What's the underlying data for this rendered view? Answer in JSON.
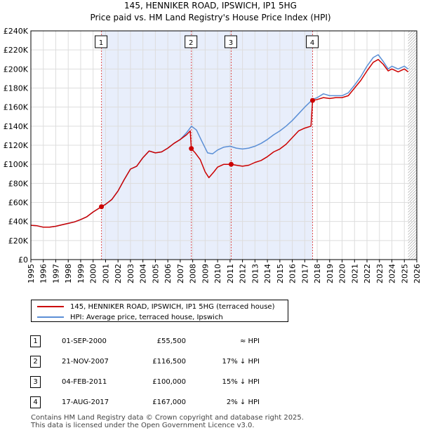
{
  "chart_data": {
    "type": "line",
    "title": "145, HENNIKER ROAD, IPSWICH, IP1 5HG",
    "subtitle": "Price paid vs. HM Land Registry's House Price Index (HPI)",
    "xlim": [
      1995,
      2026
    ],
    "ylim": [
      0,
      240000
    ],
    "x_ticks": [
      "1995",
      "1996",
      "1997",
      "1998",
      "1999",
      "2000",
      "2001",
      "2002",
      "2003",
      "2004",
      "2005",
      "2006",
      "2007",
      "2008",
      "2009",
      "2010",
      "2011",
      "2012",
      "2013",
      "2014",
      "2015",
      "2016",
      "2017",
      "2018",
      "2019",
      "2020",
      "2021",
      "2022",
      "2023",
      "2024",
      "2025",
      "2026"
    ],
    "y_ticks": [
      "£0",
      "£20K",
      "£40K",
      "£60K",
      "£80K",
      "£100K",
      "£120K",
      "£140K",
      "£160K",
      "£180K",
      "£200K",
      "£220K",
      "£240K"
    ],
    "shaded_span": [
      2000.67,
      2017.63
    ],
    "future_hatch_from": 2025.3,
    "series": [
      {
        "name": "145, HENNIKER ROAD, IPSWICH, IP1 5HG (terraced house)",
        "color": "#cc0000",
        "points": [
          [
            1995.0,
            36000
          ],
          [
            1995.5,
            35500
          ],
          [
            1996.0,
            34000
          ],
          [
            1996.5,
            34000
          ],
          [
            1997.0,
            35000
          ],
          [
            1997.5,
            36500
          ],
          [
            1998.0,
            38000
          ],
          [
            1998.5,
            39500
          ],
          [
            1999.0,
            42000
          ],
          [
            1999.5,
            45000
          ],
          [
            2000.0,
            50000
          ],
          [
            2000.67,
            55500
          ],
          [
            2001.0,
            58000
          ],
          [
            2001.5,
            63000
          ],
          [
            2002.0,
            72000
          ],
          [
            2002.5,
            84000
          ],
          [
            2003.0,
            95000
          ],
          [
            2003.5,
            98000
          ],
          [
            2004.0,
            107000
          ],
          [
            2004.5,
            114000
          ],
          [
            2005.0,
            112000
          ],
          [
            2005.5,
            113000
          ],
          [
            2006.0,
            117000
          ],
          [
            2006.5,
            122000
          ],
          [
            2007.0,
            126000
          ],
          [
            2007.5,
            131000
          ],
          [
            2007.8,
            135000
          ],
          [
            2007.89,
            116500
          ],
          [
            2008.2,
            112000
          ],
          [
            2008.6,
            105000
          ],
          [
            2009.0,
            92000
          ],
          [
            2009.3,
            86000
          ],
          [
            2009.7,
            92000
          ],
          [
            2010.0,
            97000
          ],
          [
            2010.5,
            100000
          ],
          [
            2011.1,
            100000
          ],
          [
            2011.5,
            99000
          ],
          [
            2012.0,
            98000
          ],
          [
            2012.5,
            99000
          ],
          [
            2013.0,
            102000
          ],
          [
            2013.5,
            104000
          ],
          [
            2014.0,
            108000
          ],
          [
            2014.5,
            113000
          ],
          [
            2015.0,
            116000
          ],
          [
            2015.5,
            121000
          ],
          [
            2016.0,
            128000
          ],
          [
            2016.5,
            135000
          ],
          [
            2017.0,
            138000
          ],
          [
            2017.5,
            140000
          ],
          [
            2017.63,
            167000
          ],
          [
            2018.0,
            168000
          ],
          [
            2018.5,
            170000
          ],
          [
            2019.0,
            169000
          ],
          [
            2019.5,
            170000
          ],
          [
            2020.0,
            170000
          ],
          [
            2020.5,
            172000
          ],
          [
            2021.0,
            180000
          ],
          [
            2021.5,
            188000
          ],
          [
            2022.0,
            198000
          ],
          [
            2022.5,
            207000
          ],
          [
            2022.9,
            210000
          ],
          [
            2023.3,
            205000
          ],
          [
            2023.7,
            198000
          ],
          [
            2024.0,
            200000
          ],
          [
            2024.5,
            197000
          ],
          [
            2025.0,
            200000
          ],
          [
            2025.3,
            197000
          ]
        ]
      },
      {
        "name": "HPI: Average price, terraced house, Ipswich",
        "color": "#5b8fd6",
        "points": [
          [
            1995.0,
            36000
          ],
          [
            1995.5,
            35500
          ],
          [
            1996.0,
            34000
          ],
          [
            1996.5,
            34000
          ],
          [
            1997.0,
            35000
          ],
          [
            1997.5,
            36500
          ],
          [
            1998.0,
            38000
          ],
          [
            1998.5,
            39500
          ],
          [
            1999.0,
            42000
          ],
          [
            1999.5,
            45000
          ],
          [
            2000.0,
            50000
          ],
          [
            2000.67,
            55500
          ],
          [
            2001.0,
            58000
          ],
          [
            2001.5,
            63000
          ],
          [
            2002.0,
            72000
          ],
          [
            2002.5,
            84000
          ],
          [
            2003.0,
            95000
          ],
          [
            2003.5,
            98000
          ],
          [
            2004.0,
            107000
          ],
          [
            2004.5,
            114000
          ],
          [
            2005.0,
            112000
          ],
          [
            2005.5,
            113000
          ],
          [
            2006.0,
            117000
          ],
          [
            2006.5,
            122000
          ],
          [
            2007.0,
            126000
          ],
          [
            2007.5,
            133000
          ],
          [
            2007.9,
            140000
          ],
          [
            2008.3,
            136000
          ],
          [
            2008.7,
            125000
          ],
          [
            2009.2,
            112000
          ],
          [
            2009.6,
            111000
          ],
          [
            2010.0,
            115000
          ],
          [
            2010.5,
            118000
          ],
          [
            2011.0,
            119000
          ],
          [
            2011.5,
            117000
          ],
          [
            2012.0,
            116000
          ],
          [
            2012.5,
            117000
          ],
          [
            2013.0,
            119000
          ],
          [
            2013.5,
            122000
          ],
          [
            2014.0,
            126000
          ],
          [
            2014.5,
            131000
          ],
          [
            2015.0,
            135000
          ],
          [
            2015.5,
            140000
          ],
          [
            2016.0,
            146000
          ],
          [
            2016.5,
            153000
          ],
          [
            2017.0,
            160000
          ],
          [
            2017.63,
            168000
          ],
          [
            2018.0,
            170000
          ],
          [
            2018.5,
            174000
          ],
          [
            2019.0,
            172000
          ],
          [
            2019.5,
            172000
          ],
          [
            2020.0,
            172000
          ],
          [
            2020.5,
            175000
          ],
          [
            2021.0,
            183000
          ],
          [
            2021.5,
            192000
          ],
          [
            2022.0,
            203000
          ],
          [
            2022.5,
            212000
          ],
          [
            2022.9,
            215000
          ],
          [
            2023.3,
            208000
          ],
          [
            2023.7,
            200000
          ],
          [
            2024.0,
            203000
          ],
          [
            2024.5,
            200000
          ],
          [
            2025.0,
            203000
          ],
          [
            2025.3,
            200000
          ]
        ]
      }
    ],
    "sales": [
      {
        "label": "1",
        "x": 2000.67,
        "value": 55500
      },
      {
        "label": "2",
        "x": 2007.89,
        "value": 116500
      },
      {
        "label": "3",
        "x": 2011.09,
        "value": 100000
      },
      {
        "label": "4",
        "x": 2017.63,
        "value": 167000
      }
    ]
  },
  "legend": {
    "property": "145, HENNIKER ROAD, IPSWICH, IP1 5HG (terraced house)",
    "hpi": "HPI: Average price, terraced house, Ipswich"
  },
  "transactions": [
    {
      "num": "1",
      "date": "01-SEP-2000",
      "price": "£55,500",
      "rel": "≈ HPI"
    },
    {
      "num": "2",
      "date": "21-NOV-2007",
      "price": "£116,500",
      "rel": "17% ↓ HPI"
    },
    {
      "num": "3",
      "date": "04-FEB-2011",
      "price": "£100,000",
      "rel": "15% ↓ HPI"
    },
    {
      "num": "4",
      "date": "17-AUG-2017",
      "price": "£167,000",
      "rel": "2% ↓ HPI"
    }
  ],
  "footer": {
    "line1": "Contains HM Land Registry data © Crown copyright and database right 2025.",
    "line2": "This data is licensed under the Open Government Licence v3.0."
  },
  "colors": {
    "property": "#cc0000",
    "hpi": "#5b8fd6",
    "shade": "#e8eefb",
    "grid": "#dddddd"
  }
}
